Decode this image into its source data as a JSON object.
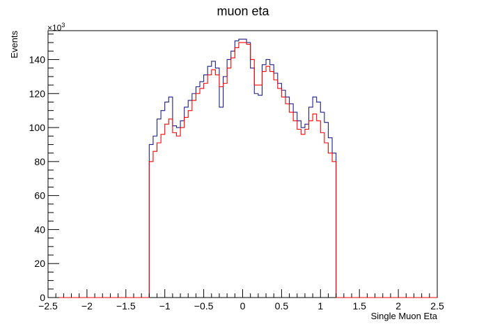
{
  "chart_data": {
    "type": "histogram",
    "title": "muon eta",
    "xlabel": "Single Muon Eta",
    "ylabel": "Events",
    "y_multiplier_label": "×10",
    "y_multiplier_exponent": "3",
    "xlim": [
      -2.5,
      2.5
    ],
    "ylim": [
      0,
      157
    ],
    "grid": false,
    "bin_width": 0.05,
    "x_ticks": [
      -2.5,
      -2,
      -1.5,
      -1,
      -0.5,
      0,
      0.5,
      1,
      1.5,
      2,
      2.5
    ],
    "x_tick_labels": [
      "−2.5",
      "−2",
      "−1.5",
      "−1",
      "−0.5",
      "0",
      "0.5",
      "1",
      "1.5",
      "2",
      "2.5"
    ],
    "y_ticks": [
      0,
      20,
      40,
      60,
      80,
      100,
      120,
      140
    ],
    "y_tick_labels": [
      "0",
      "20",
      "40",
      "60",
      "80",
      "100",
      "120",
      "140"
    ],
    "series": [
      {
        "color": "#1d1d8c",
        "bin_low_edges": [
          -1.2,
          -1.15,
          -1.1,
          -1.05,
          -1.0,
          -0.95,
          -0.9,
          -0.85,
          -0.8,
          -0.75,
          -0.7,
          -0.65,
          -0.6,
          -0.55,
          -0.5,
          -0.45,
          -0.4,
          -0.35,
          -0.3,
          -0.25,
          -0.2,
          -0.15,
          -0.1,
          -0.05,
          0.0,
          0.05,
          0.1,
          0.15,
          0.2,
          0.25,
          0.3,
          0.35,
          0.4,
          0.45,
          0.5,
          0.55,
          0.6,
          0.65,
          0.7,
          0.75,
          0.8,
          0.85,
          0.9,
          0.95,
          1.0,
          1.05,
          1.1,
          1.15
        ],
        "values": [
          90,
          95,
          105,
          110,
          115,
          118,
          101,
          100,
          104,
          112,
          116,
          120,
          124,
          127,
          131,
          136,
          139,
          135,
          112,
          130,
          140,
          145,
          151,
          152,
          152,
          150,
          135,
          120,
          119,
          137,
          140,
          137,
          132,
          126,
          122,
          118,
          114,
          109,
          104,
          100,
          102,
          112,
          118,
          115,
          109,
          103,
          94,
          85
        ]
      },
      {
        "color": "#ff0000",
        "bin_low_edges": [
          -1.2,
          -1.15,
          -1.1,
          -1.05,
          -1.0,
          -0.95,
          -0.9,
          -0.85,
          -0.8,
          -0.75,
          -0.7,
          -0.65,
          -0.6,
          -0.55,
          -0.5,
          -0.45,
          -0.4,
          -0.35,
          -0.3,
          -0.25,
          -0.2,
          -0.15,
          -0.1,
          -0.05,
          0.0,
          0.05,
          0.1,
          0.15,
          0.2,
          0.25,
          0.3,
          0.35,
          0.4,
          0.45,
          0.5,
          0.55,
          0.6,
          0.65,
          0.7,
          0.75,
          0.8,
          0.85,
          0.9,
          0.95,
          1.0,
          1.05,
          1.1,
          1.15
        ],
        "values": [
          80,
          86,
          91,
          96,
          102,
          105,
          97,
          95,
          100,
          106,
          110,
          116,
          120,
          123,
          126,
          131,
          134,
          131,
          124,
          126,
          135,
          141,
          147,
          150,
          150,
          149,
          140,
          125,
          125,
          133,
          136,
          133,
          128,
          123,
          118,
          114,
          109,
          104,
          99,
          96,
          99,
          104,
          108,
          104,
          97,
          91,
          85,
          80
        ]
      }
    ]
  }
}
